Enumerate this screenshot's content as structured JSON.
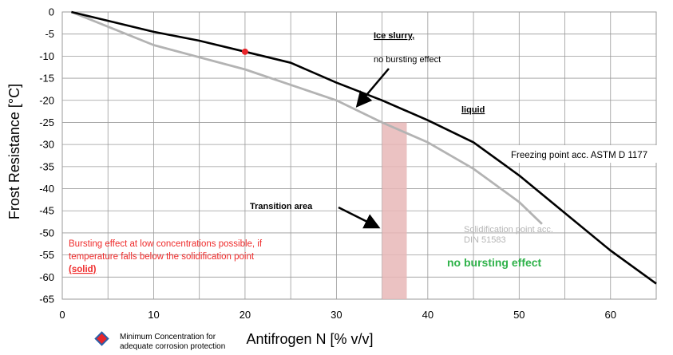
{
  "chart_data": {
    "type": "line",
    "xlabel": "Antifrogen N [% v/v]",
    "ylabel": "Frost Resistance [°C]",
    "xlim": [
      0,
      65
    ],
    "ylim": [
      -65,
      0
    ],
    "x_ticks": [
      "0",
      "10",
      "20",
      "30",
      "40",
      "50",
      "60"
    ],
    "y_ticks": [
      "0",
      "-5",
      "-10",
      "-15",
      "-20",
      "-25",
      "-30",
      "-35",
      "-40",
      "-45",
      "-50",
      "-55",
      "-60",
      "-65"
    ],
    "x_tick_values": [
      0,
      10,
      20,
      30,
      40,
      50,
      60
    ],
    "y_tick_values": [
      0,
      -5,
      -10,
      -15,
      -20,
      -25,
      -30,
      -35,
      -40,
      -45,
      -50,
      -55,
      -60,
      -65
    ],
    "grid": true,
    "series": [
      {
        "name": "Freezing point acc. ASTM D 1177",
        "color": "#000000",
        "points": [
          [
            1,
            0
          ],
          [
            10,
            -4.5
          ],
          [
            15,
            -6.5
          ],
          [
            20,
            -9
          ],
          [
            25,
            -11.5
          ],
          [
            30,
            -16
          ],
          [
            35,
            -20
          ],
          [
            40,
            -24.5
          ],
          [
            45,
            -29.5
          ],
          [
            50,
            -37
          ],
          [
            55,
            -45.5
          ],
          [
            60,
            -54
          ],
          [
            65,
            -61.5
          ]
        ]
      },
      {
        "name": "Solidification point acc. DIN 51583",
        "color": "#b3b3b3",
        "points": [
          [
            1,
            0
          ],
          [
            10,
            -7.5
          ],
          [
            20,
            -13
          ],
          [
            30,
            -20
          ],
          [
            35,
            -25
          ],
          [
            40,
            -29.5
          ],
          [
            45,
            -35.5
          ],
          [
            50,
            -43
          ],
          [
            52.5,
            -48
          ]
        ]
      }
    ],
    "marker": {
      "x": 20,
      "y": -9,
      "color": "#e8262b"
    },
    "transition_band": {
      "x_from": 35,
      "x_to": 37.7,
      "y_from": -25,
      "y_to": -65,
      "color": "#e8b7b7"
    },
    "annotations": {
      "ice_slurry": "Ice slurry,",
      "no_bursting_upper": "no bursting effect",
      "liquid": "liquid",
      "freezing_point": "Freezing point acc. ASTM D 1177",
      "transition": "Transition area",
      "solidification_1": "Solidification point acc.",
      "solidification_2": "DIN 51583",
      "bursting_1": "Bursting effect at low concentrations  possible, if",
      "bursting_2": "temperature  falls below the solidification point",
      "bursting_3": "(solid)",
      "no_bursting_lower": "no bursting effect"
    },
    "legend": {
      "line1": "Minimum Concentration for",
      "line2": "adequate corrosion protection"
    },
    "colors": {
      "red_text": "#ef2b2b",
      "green_text": "#2fb24a",
      "grid": "#9a9a9a",
      "gray_text": "#b5b5b5"
    }
  }
}
